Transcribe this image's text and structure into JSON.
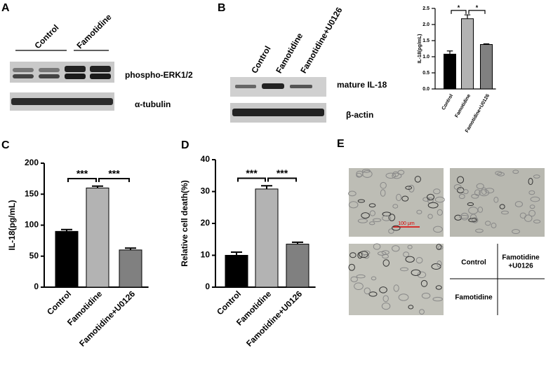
{
  "panel_labels": [
    "A",
    "B",
    "C",
    "D",
    "E"
  ],
  "blot_a": {
    "lanes": [
      "Control",
      "Famotidine"
    ],
    "bands": [
      "phospho-ERK1/2",
      "α-tubulin"
    ]
  },
  "blot_b": {
    "lanes": [
      "Control",
      "Famotidine",
      "Famotidine+U0126"
    ],
    "bands": [
      "mature IL-18",
      "β-actin"
    ]
  },
  "chart_data": [
    {
      "type": "bar",
      "y_label": "IL-18(pg/mL)",
      "categories": [
        "Control",
        "Famotidine",
        "Famotidine+U0126"
      ],
      "values": [
        1.08,
        2.18,
        1.38
      ],
      "errors": [
        0.1,
        0.12,
        0.02
      ],
      "colors": [
        "#000000",
        "#b3b3b3",
        "#808080"
      ],
      "ylim": [
        0,
        2.5
      ],
      "yticks": [
        {
          "value": 0,
          "label": "0.0"
        },
        0.5,
        {
          "value": 1,
          "label": "1.0"
        },
        1.5,
        {
          "value": 2,
          "label": "2.0"
        },
        2.5
      ],
      "significance": [
        "*",
        "*"
      ]
    },
    {
      "type": "bar",
      "y_label": "IL-18(pg/mL)",
      "categories": [
        "Control",
        "Famotidine",
        "Famotidine+U0126"
      ],
      "values": [
        90,
        160,
        60
      ],
      "errors": [
        3,
        3,
        3
      ],
      "colors": [
        "#000000",
        "#b3b3b3",
        "#808080"
      ],
      "ylim": [
        0,
        200
      ],
      "yticks": [
        0,
        50,
        100,
        150,
        200
      ],
      "significance": [
        "***",
        "***"
      ]
    },
    {
      "type": "bar",
      "y_label": "Relative cell death(%)",
      "categories": [
        "Control",
        "Famotidine",
        "Famotidine+U0126"
      ],
      "values": [
        10,
        30.8,
        13.5
      ],
      "errors": [
        1,
        1,
        0.6
      ],
      "colors": [
        "#000000",
        "#b3b3b3",
        "#808080"
      ],
      "ylim": [
        0,
        40
      ],
      "yticks": [
        0,
        10,
        20,
        30,
        40
      ],
      "significance": [
        "***",
        "***"
      ]
    }
  ],
  "panel_e": {
    "scale_bar": "100 μm",
    "control": "Control",
    "famotidine_u0126": [
      "Famotidine",
      "+U0126"
    ],
    "famotidine": "Famotidine"
  }
}
